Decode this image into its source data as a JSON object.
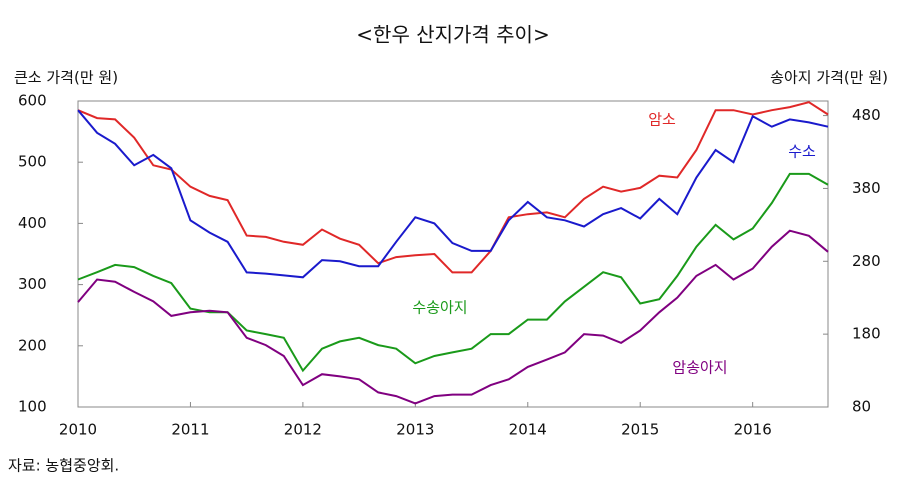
{
  "chart_data": {
    "type": "line",
    "title": "<한우 산지가격 추이>",
    "y_label": "큰소 가격(만 원)",
    "y2_label": "송아지 가격(만 원)",
    "source": "자료: 농협중앙회.",
    "x": [
      2010,
      2010.17,
      2010.33,
      2010.5,
      2010.67,
      2010.83,
      2011,
      2011.17,
      2011.33,
      2011.5,
      2011.67,
      2011.83,
      2012,
      2012.17,
      2012.33,
      2012.5,
      2012.67,
      2012.83,
      2013,
      2013.17,
      2013.33,
      2013.5,
      2013.67,
      2013.83,
      2014,
      2014.17,
      2014.33,
      2014.5,
      2014.67,
      2014.83,
      2015,
      2015.17,
      2015.33,
      2015.5,
      2015.67,
      2015.83,
      2016,
      2016.17,
      2016.33,
      2016.5,
      2016.67
    ],
    "xlim": [
      2010,
      2016.67
    ],
    "xticks": [
      2010,
      2011,
      2012,
      2013,
      2014,
      2015,
      2016
    ],
    "ylim": [
      100,
      600
    ],
    "yticks": [
      100,
      200,
      300,
      400,
      500,
      600
    ],
    "y2lim": [
      80,
      500
    ],
    "y2ticks": [
      80,
      180,
      280,
      380,
      480
    ],
    "series": [
      {
        "name": "암소",
        "color": "#e02828",
        "values": [
          585,
          572,
          570,
          540,
          495,
          488,
          460,
          445,
          438,
          380,
          378,
          370,
          365,
          390,
          375,
          365,
          335,
          345,
          348,
          350,
          320,
          320,
          355,
          410,
          415,
          418,
          410,
          440,
          460,
          452,
          458,
          478,
          475,
          520,
          585,
          585,
          578,
          585,
          590,
          598,
          578
        ]
      },
      {
        "name": "수소",
        "color": "#1a1acc",
        "values": [
          585,
          548,
          530,
          495,
          512,
          490,
          405,
          385,
          370,
          320,
          318,
          315,
          312,
          340,
          338,
          330,
          330,
          370,
          410,
          400,
          368,
          355,
          355,
          405,
          435,
          410,
          405,
          395,
          415,
          425,
          408,
          440,
          415,
          475,
          520,
          500,
          575,
          558,
          570,
          565,
          558
        ]
      },
      {
        "name": "수송아지",
        "color": "#1a9a1a",
        "axis": "y2",
        "values": [
          255,
          265,
          275,
          272,
          260,
          250,
          215,
          210,
          210,
          185,
          180,
          175,
          130,
          160,
          170,
          175,
          165,
          160,
          140,
          150,
          155,
          160,
          180,
          180,
          200,
          200,
          225,
          245,
          265,
          258,
          222,
          228,
          260,
          300,
          330,
          310,
          325,
          360,
          400,
          400,
          385
        ]
      },
      {
        "name": "암송아지",
        "color": "#800080",
        "axis": "y2",
        "values": [
          224,
          255,
          252,
          238,
          225,
          205,
          210,
          212,
          210,
          175,
          165,
          150,
          110,
          125,
          122,
          118,
          100,
          95,
          85,
          95,
          97,
          97,
          110,
          118,
          135,
          145,
          155,
          180,
          178,
          168,
          185,
          210,
          230,
          260,
          275,
          255,
          270,
          300,
          322,
          315,
          293
        ]
      }
    ]
  }
}
